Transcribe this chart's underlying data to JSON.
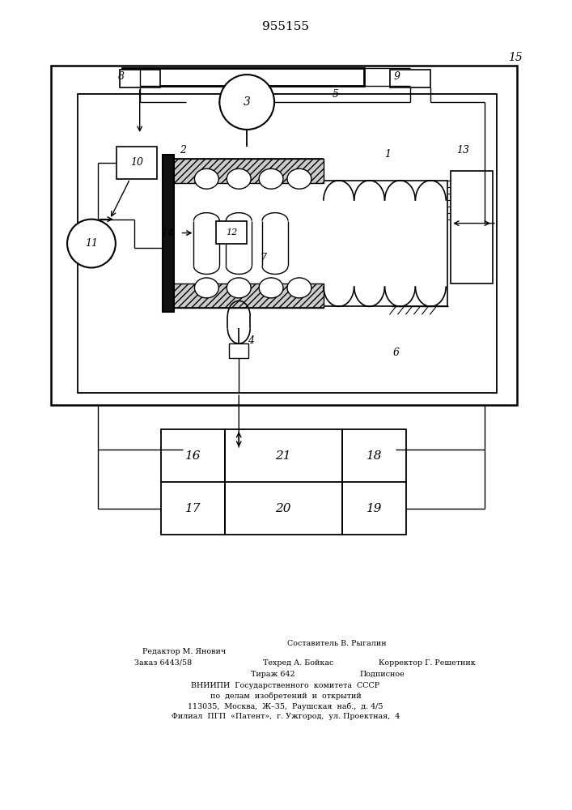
{
  "title": "955155",
  "footer": [
    [
      "Редактор М. Янович",
      175,
      855
    ],
    [
      "Составитель В. Рыгалин",
      390,
      862
    ],
    [
      "Заказ 6443/58",
      170,
      840
    ],
    [
      "Техред А. Бойкас",
      370,
      840
    ],
    [
      "Корректор Г. Решетник",
      520,
      840
    ],
    [
      "Тираж 642",
      350,
      825
    ],
    [
      "Подписное",
      510,
      825
    ],
    [
      "ВНИИПИ  Государственного  комитета  СССР",
      353,
      810
    ],
    [
      "по  делам  изобретений  и  открытий",
      353,
      796
    ],
    [
      "113035,  Москва,  Ж–35,  Раушская  наб.,  д. 4/5",
      353,
      782
    ],
    [
      "Филиал  ПГП  «Патент»,  г. Ужгород,  ул. Проектная,  4",
      353,
      768
    ]
  ]
}
